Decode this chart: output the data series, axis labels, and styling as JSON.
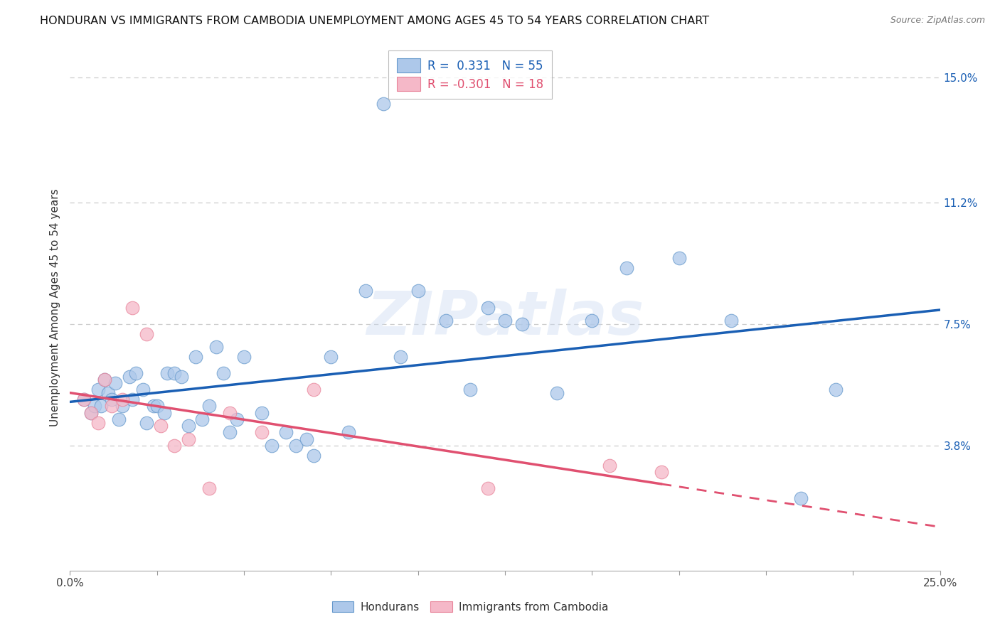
{
  "title": "HONDURAN VS IMMIGRANTS FROM CAMBODIA UNEMPLOYMENT AMONG AGES 45 TO 54 YEARS CORRELATION CHART",
  "source": "Source: ZipAtlas.com",
  "ylabel": "Unemployment Among Ages 45 to 54 years",
  "xlim": [
    0.0,
    0.25
  ],
  "ylim": [
    0.0,
    0.16
  ],
  "xticks": [
    0.0,
    0.025,
    0.05,
    0.075,
    0.1,
    0.125,
    0.15,
    0.175,
    0.2,
    0.225,
    0.25
  ],
  "xticklabels": [
    "0.0%",
    "",
    "",
    "",
    "",
    "",
    "",
    "",
    "",
    "",
    "25.0%"
  ],
  "yticks_right": [
    0.038,
    0.075,
    0.112,
    0.15
  ],
  "ytick_right_labels": [
    "3.8%",
    "7.5%",
    "11.2%",
    "15.0%"
  ],
  "honduran_color": "#adc8ea",
  "honduran_edge_color": "#6699cc",
  "cambodia_color": "#f5b8c8",
  "cambodia_edge_color": "#e8849a",
  "honduran_line_color": "#1a5fb4",
  "cambodia_line_color": "#e05070",
  "legend_text_blue": "#1a5fb4",
  "legend_text_pink": "#e05070",
  "honduran_R": 0.331,
  "honduran_N": 55,
  "cambodia_R": -0.301,
  "cambodia_N": 18,
  "honduran_scatter_x": [
    0.004,
    0.006,
    0.007,
    0.008,
    0.009,
    0.01,
    0.011,
    0.012,
    0.013,
    0.014,
    0.015,
    0.017,
    0.018,
    0.019,
    0.021,
    0.022,
    0.024,
    0.025,
    0.027,
    0.028,
    0.03,
    0.032,
    0.034,
    0.036,
    0.038,
    0.04,
    0.042,
    0.044,
    0.046,
    0.048,
    0.05,
    0.055,
    0.058,
    0.062,
    0.065,
    0.068,
    0.07,
    0.075,
    0.08,
    0.085,
    0.09,
    0.095,
    0.1,
    0.108,
    0.115,
    0.12,
    0.125,
    0.13,
    0.14,
    0.15,
    0.16,
    0.175,
    0.19,
    0.21,
    0.22
  ],
  "honduran_scatter_y": [
    0.052,
    0.048,
    0.05,
    0.055,
    0.05,
    0.058,
    0.054,
    0.052,
    0.057,
    0.046,
    0.05,
    0.059,
    0.052,
    0.06,
    0.055,
    0.045,
    0.05,
    0.05,
    0.048,
    0.06,
    0.06,
    0.059,
    0.044,
    0.065,
    0.046,
    0.05,
    0.068,
    0.06,
    0.042,
    0.046,
    0.065,
    0.048,
    0.038,
    0.042,
    0.038,
    0.04,
    0.035,
    0.065,
    0.042,
    0.085,
    0.142,
    0.065,
    0.085,
    0.076,
    0.055,
    0.08,
    0.076,
    0.075,
    0.054,
    0.076,
    0.092,
    0.095,
    0.076,
    0.022,
    0.055
  ],
  "cambodia_scatter_x": [
    0.004,
    0.006,
    0.008,
    0.01,
    0.012,
    0.015,
    0.018,
    0.022,
    0.026,
    0.03,
    0.034,
    0.04,
    0.046,
    0.055,
    0.07,
    0.12,
    0.155,
    0.17
  ],
  "cambodia_scatter_y": [
    0.052,
    0.048,
    0.045,
    0.058,
    0.05,
    0.052,
    0.08,
    0.072,
    0.044,
    0.038,
    0.04,
    0.025,
    0.048,
    0.042,
    0.055,
    0.025,
    0.032,
    0.03
  ],
  "watermark_text": "ZIPatlas",
  "background_color": "#ffffff",
  "grid_color": "#cccccc",
  "marker_size": 180,
  "marker_alpha": 0.75
}
